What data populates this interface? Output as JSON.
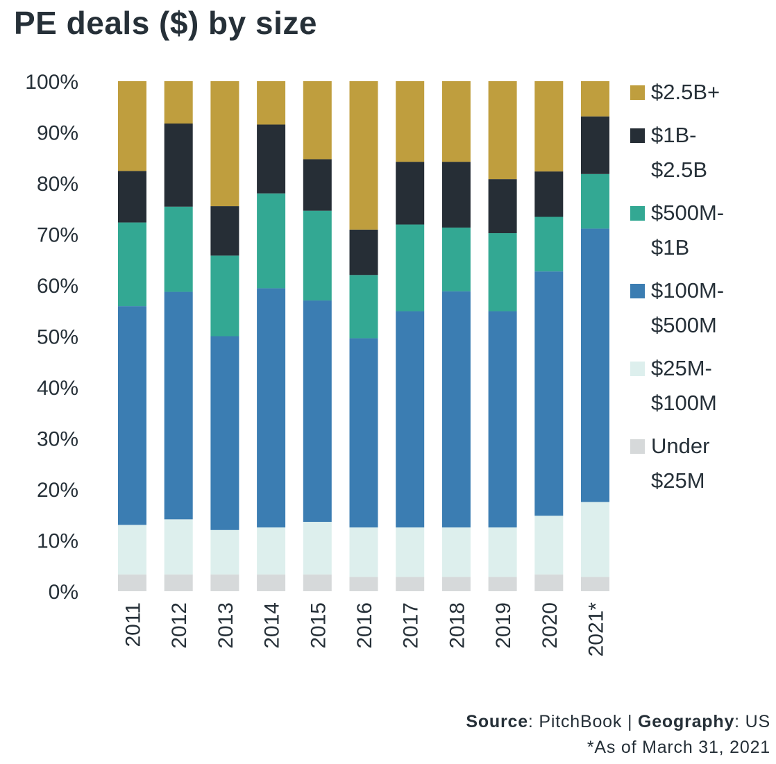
{
  "title": "PE deals ($) by size",
  "footer": {
    "source_label": "Source",
    "source_value": "PitchBook",
    "sep": "|",
    "geo_label": "Geography",
    "geo_value": "US",
    "note": "*As of March 31, 2021"
  },
  "chart_data": {
    "type": "bar",
    "stacked": true,
    "percent": true,
    "categories": [
      "2011",
      "2012",
      "2013",
      "2014",
      "2015",
      "2016",
      "2017",
      "2018",
      "2019",
      "2020",
      "2021*"
    ],
    "ylim": [
      0,
      100
    ],
    "yticks": [
      "0%",
      "10%",
      "20%",
      "30%",
      "40%",
      "50%",
      "60%",
      "70%",
      "80%",
      "90%",
      "100%"
    ],
    "series": [
      {
        "name": "Under $25M",
        "legend": [
          "Under",
          "$25M"
        ],
        "color": "#d6d9da",
        "values": [
          3.3,
          3.3,
          3.3,
          3.3,
          3.3,
          2.8,
          2.8,
          2.8,
          2.8,
          3.3,
          2.8
        ]
      },
      {
        "name": "$25M-$100M",
        "legend": [
          "$25M-",
          "$100M"
        ],
        "color": "#ddefed",
        "values": [
          9.7,
          10.8,
          8.7,
          9.2,
          10.3,
          9.7,
          9.7,
          9.7,
          9.7,
          11.5,
          14.7
        ]
      },
      {
        "name": "$100M-$500M",
        "legend": [
          "$100M-",
          "$500M"
        ],
        "color": "#3b7db2",
        "values": [
          42.9,
          44.6,
          38.0,
          46.9,
          43.4,
          37.1,
          42.4,
          46.3,
          42.4,
          47.9,
          53.6
        ]
      },
      {
        "name": "$500M-$1B",
        "legend": [
          "$500M-",
          "$1B"
        ],
        "color": "#33a893",
        "values": [
          16.4,
          16.7,
          15.8,
          18.6,
          17.6,
          12.4,
          17.0,
          12.5,
          15.3,
          10.7,
          10.7
        ]
      },
      {
        "name": "$1B-$2.5B",
        "legend": [
          "$1B-",
          "$2.5B"
        ],
        "color": "#262e36",
        "values": [
          10.1,
          16.3,
          9.7,
          13.5,
          10.1,
          8.9,
          12.3,
          12.9,
          10.6,
          8.9,
          11.3
        ]
      },
      {
        "name": "$2.5B+",
        "legend": [
          "$2.5B+"
        ],
        "color": "#bf9e3e",
        "values": [
          17.6,
          8.3,
          24.5,
          8.5,
          15.3,
          29.1,
          15.8,
          15.8,
          19.2,
          17.7,
          6.9
        ]
      }
    ]
  }
}
